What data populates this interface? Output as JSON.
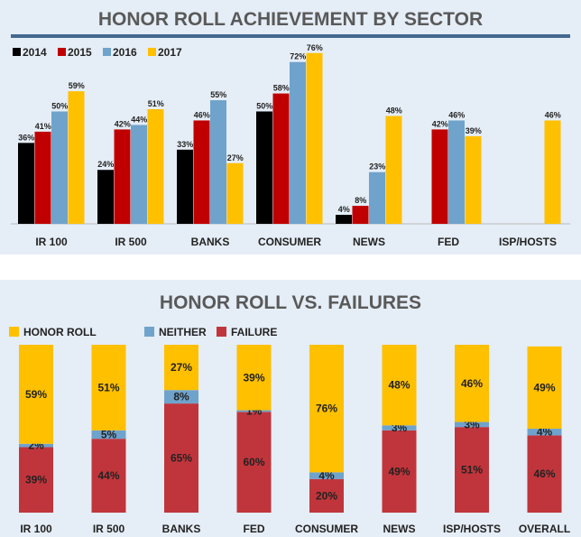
{
  "chart_data": [
    {
      "type": "bar",
      "title": "HONOR ROLL ACHIEVEMENT BY SECTOR",
      "categories": [
        "IR 100",
        "IR 500",
        "BANKS",
        "CONSUMER",
        "NEWS",
        "FED",
        "ISP/HOSTS"
      ],
      "series": [
        {
          "name": "2014",
          "color": "#000000",
          "values": [
            36,
            24,
            33,
            50,
            4,
            null,
            null
          ]
        },
        {
          "name": "2015",
          "color": "#c00000",
          "values": [
            41,
            42,
            46,
            58,
            8,
            42,
            null
          ]
        },
        {
          "name": "2016",
          "color": "#6fa3cc",
          "values": [
            50,
            44,
            55,
            72,
            23,
            46,
            null
          ]
        },
        {
          "name": "2017",
          "color": "#ffc000",
          "values": [
            59,
            51,
            27,
            76,
            48,
            39,
            46
          ]
        }
      ],
      "unit": "%",
      "legend": "top-left",
      "grid": false,
      "ylim": [
        0,
        80
      ]
    },
    {
      "type": "bar",
      "stacked": true,
      "title": "HONOR ROLL VS. FAILURES",
      "categories": [
        "IR 100",
        "IR 500",
        "BANKS",
        "FED",
        "CONSUMER",
        "NEWS",
        "ISP/HOSTS",
        "OVERALL"
      ],
      "series": [
        {
          "name": "FAILURE",
          "color": "#c0353b",
          "values": [
            39,
            44,
            65,
            60,
            20,
            49,
            51,
            46
          ]
        },
        {
          "name": "NEITHER",
          "color": "#6fa3cc",
          "values": [
            2,
            5,
            8,
            1,
            4,
            3,
            3,
            4
          ]
        },
        {
          "name": "HONOR ROLL",
          "color": "#ffc000",
          "values": [
            59,
            51,
            27,
            39,
            76,
            48,
            46,
            49
          ]
        }
      ],
      "legend_order": [
        "HONOR ROLL",
        "NEITHER",
        "FAILURE"
      ],
      "unit": "%",
      "legend": "top-left",
      "grid": false,
      "ylim": [
        0,
        100
      ]
    }
  ]
}
